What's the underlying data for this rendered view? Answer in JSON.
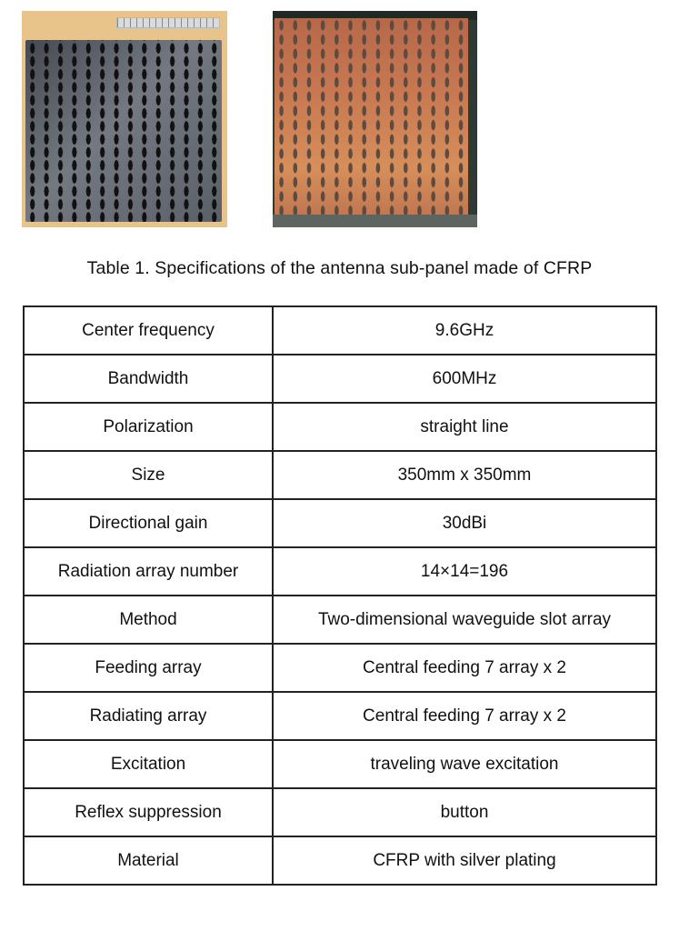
{
  "figure": {
    "left_photo": {
      "description": "black CFRP antenna sub-panel with slot array and ruler"
    },
    "right_photo": {
      "description": "copper-colored waveguide slot array panel"
    }
  },
  "caption": "Table 1.  Specifications of the antenna sub-panel made of CFRP",
  "table": {
    "rows": [
      {
        "parameter": "Center frequency",
        "value": "9.6GHz"
      },
      {
        "parameter": "Bandwidth",
        "value": "600MHz"
      },
      {
        "parameter": "Polarization",
        "value": "straight line"
      },
      {
        "parameter": "Size",
        "value": "350mm x 350mm"
      },
      {
        "parameter": "Directional gain",
        "value": "30dBi"
      },
      {
        "parameter": "Radiation array number",
        "value": "14×14=196"
      },
      {
        "parameter": "Method",
        "value": "Two-dimensional waveguide slot array"
      },
      {
        "parameter": "Feeding array",
        "value": "Central feeding 7 array x 2"
      },
      {
        "parameter": "Radiating array",
        "value": "Central feeding 7 array x 2"
      },
      {
        "parameter": "Excitation",
        "value": "traveling wave excitation"
      },
      {
        "parameter": "Reflex suppression",
        "value": "button"
      },
      {
        "parameter": "Material",
        "value": "CFRP with silver plating"
      }
    ]
  }
}
